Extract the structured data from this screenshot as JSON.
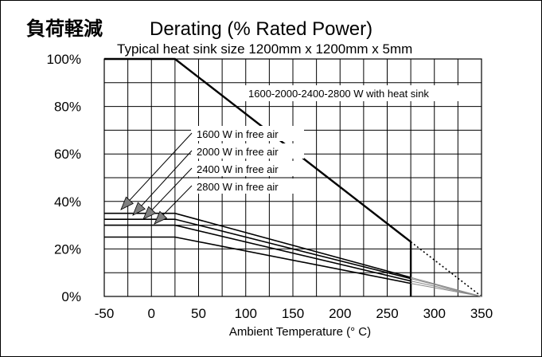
{
  "chart_data": {
    "type": "line",
    "title_cn": "負荷軽減",
    "title": "Derating (% Rated Power)",
    "subtitle": "Typical heat sink size 1200mm x 1200mm x 5mm",
    "xlabel": "Ambient Temperature (° C)",
    "ylabel": "",
    "xlim": [
      -50,
      350
    ],
    "ylim": [
      0,
      100
    ],
    "x_ticks": [
      -50,
      0,
      50,
      100,
      150,
      200,
      250,
      300,
      350
    ],
    "y_ticks": [
      "0%",
      "20%",
      "40%",
      "60%",
      "80%",
      "100%"
    ],
    "grid": true,
    "series": [
      {
        "name": "1600-2000-2400-2800 W with heat sink",
        "points": [
          [
            -50,
            100
          ],
          [
            25,
            100
          ],
          [
            275,
            23
          ],
          [
            275,
            0
          ]
        ],
        "extrapolation": [
          [
            275,
            23
          ],
          [
            350,
            0
          ]
        ]
      },
      {
        "name": "1600 W in free air",
        "points": [
          [
            -50,
            35
          ],
          [
            25,
            35
          ],
          [
            275,
            8
          ],
          [
            275,
            0
          ]
        ],
        "extrapolation": [
          [
            275,
            8
          ],
          [
            350,
            0
          ]
        ]
      },
      {
        "name": "2000 W in free air",
        "points": [
          [
            -50,
            32.5
          ],
          [
            25,
            32.5
          ],
          [
            275,
            7.5
          ],
          [
            275,
            0
          ]
        ],
        "extrapolation": [
          [
            275,
            7.5
          ],
          [
            350,
            0
          ]
        ]
      },
      {
        "name": "2400 W in free air",
        "points": [
          [
            -50,
            30
          ],
          [
            25,
            30
          ],
          [
            275,
            6.5
          ],
          [
            275,
            0
          ]
        ],
        "extrapolation": [
          [
            275,
            6.5
          ],
          [
            350,
            0
          ]
        ]
      },
      {
        "name": "2800 W in free air",
        "points": [
          [
            -50,
            25
          ],
          [
            25,
            25
          ],
          [
            275,
            5.5
          ],
          [
            275,
            0
          ]
        ],
        "extrapolation": [
          [
            275,
            5.5
          ],
          [
            350,
            0
          ]
        ]
      }
    ],
    "annotations": {
      "heatsink_label": "1600-2000-2400-2800 W with heat sink",
      "free_air_labels": [
        "1600 W in free air",
        "2000 W in free air",
        "2400 W in free air",
        "2800 W in free air"
      ]
    },
    "colors": {
      "line": "#000000",
      "grid": "#000000",
      "background": "#ffffff",
      "arrow_fill": "#7f7f7f"
    }
  }
}
